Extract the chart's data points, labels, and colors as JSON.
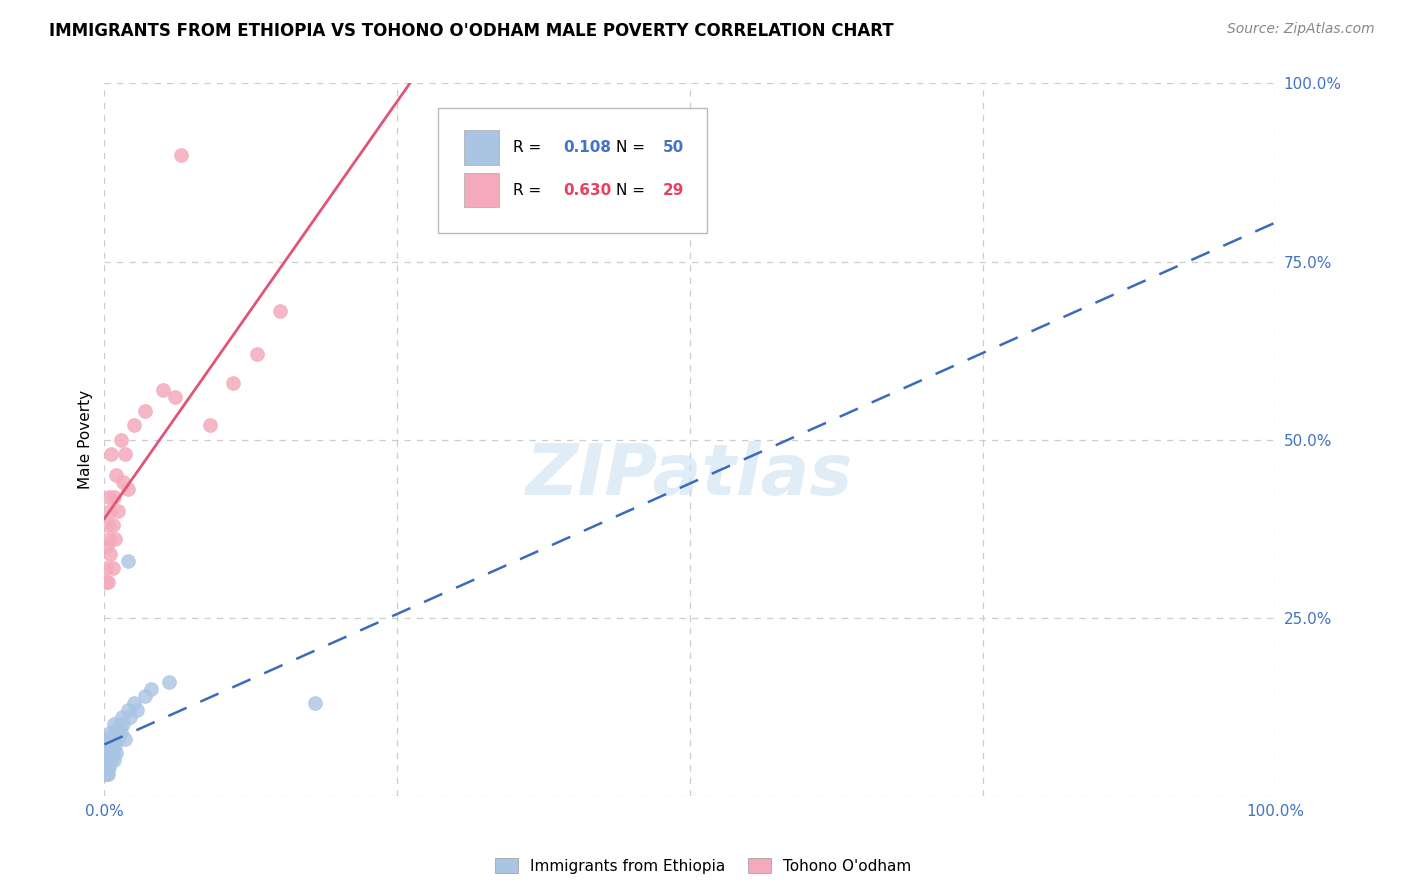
{
  "title": "IMMIGRANTS FROM ETHIOPIA VS TOHONO O'ODHAM MALE POVERTY CORRELATION CHART",
  "source": "Source: ZipAtlas.com",
  "ylabel": "Male Poverty",
  "legend_labels": [
    "Immigrants from Ethiopia",
    "Tohono O'odham"
  ],
  "blue_R": "0.108",
  "blue_N": "50",
  "pink_R": "0.630",
  "pink_N": "29",
  "blue_color": "#aac4e4",
  "pink_color": "#f4aabb",
  "blue_line_color": "#3a6abf",
  "pink_line_color": "#e05575",
  "watermark_text": "ZIPatlas",
  "blue_scatter_x": [
    0.001,
    0.001,
    0.001,
    0.001,
    0.001,
    0.002,
    0.002,
    0.002,
    0.002,
    0.002,
    0.003,
    0.003,
    0.003,
    0.003,
    0.003,
    0.003,
    0.004,
    0.004,
    0.004,
    0.004,
    0.005,
    0.005,
    0.005,
    0.006,
    0.006,
    0.006,
    0.007,
    0.007,
    0.008,
    0.008,
    0.009,
    0.009,
    0.01,
    0.01,
    0.011,
    0.012,
    0.013,
    0.014,
    0.015,
    0.016,
    0.018,
    0.02,
    0.022,
    0.025,
    0.028,
    0.035,
    0.04,
    0.055,
    0.18,
    0.02
  ],
  "blue_scatter_y": [
    0.05,
    0.04,
    0.06,
    0.03,
    0.07,
    0.04,
    0.05,
    0.06,
    0.03,
    0.08,
    0.05,
    0.04,
    0.06,
    0.07,
    0.03,
    0.08,
    0.05,
    0.06,
    0.04,
    0.07,
    0.05,
    0.06,
    0.08,
    0.05,
    0.07,
    0.09,
    0.06,
    0.08,
    0.05,
    0.1,
    0.07,
    0.09,
    0.06,
    0.08,
    0.09,
    0.08,
    0.1,
    0.09,
    0.11,
    0.1,
    0.08,
    0.12,
    0.11,
    0.13,
    0.12,
    0.14,
    0.15,
    0.16,
    0.13,
    0.33
  ],
  "pink_scatter_x": [
    0.001,
    0.001,
    0.002,
    0.003,
    0.003,
    0.004,
    0.004,
    0.005,
    0.005,
    0.006,
    0.007,
    0.007,
    0.008,
    0.009,
    0.01,
    0.012,
    0.014,
    0.016,
    0.018,
    0.02,
    0.025,
    0.035,
    0.05,
    0.06,
    0.065,
    0.09,
    0.11,
    0.13,
    0.15
  ],
  "pink_scatter_y": [
    0.3,
    0.32,
    0.35,
    0.38,
    0.3,
    0.42,
    0.36,
    0.34,
    0.4,
    0.48,
    0.32,
    0.38,
    0.42,
    0.36,
    0.45,
    0.4,
    0.5,
    0.44,
    0.48,
    0.43,
    0.52,
    0.54,
    0.57,
    0.56,
    0.9,
    0.52,
    0.58,
    0.62,
    0.68
  ],
  "xlim": [
    0,
    1.0
  ],
  "ylim": [
    0,
    1.0
  ],
  "yticks": [
    0.0,
    0.25,
    0.5,
    0.75,
    1.0
  ],
  "ytick_labels_right": [
    "",
    "25.0%",
    "50.0%",
    "75.0%",
    "100.0%"
  ],
  "xtick_labels": [
    "0.0%",
    "",
    "",
    "",
    "100.0%"
  ],
  "tick_color": "#4472c4",
  "grid_color": "#cccccc",
  "title_fontsize": 12,
  "source_fontsize": 10,
  "tick_fontsize": 11,
  "ylabel_fontsize": 11
}
